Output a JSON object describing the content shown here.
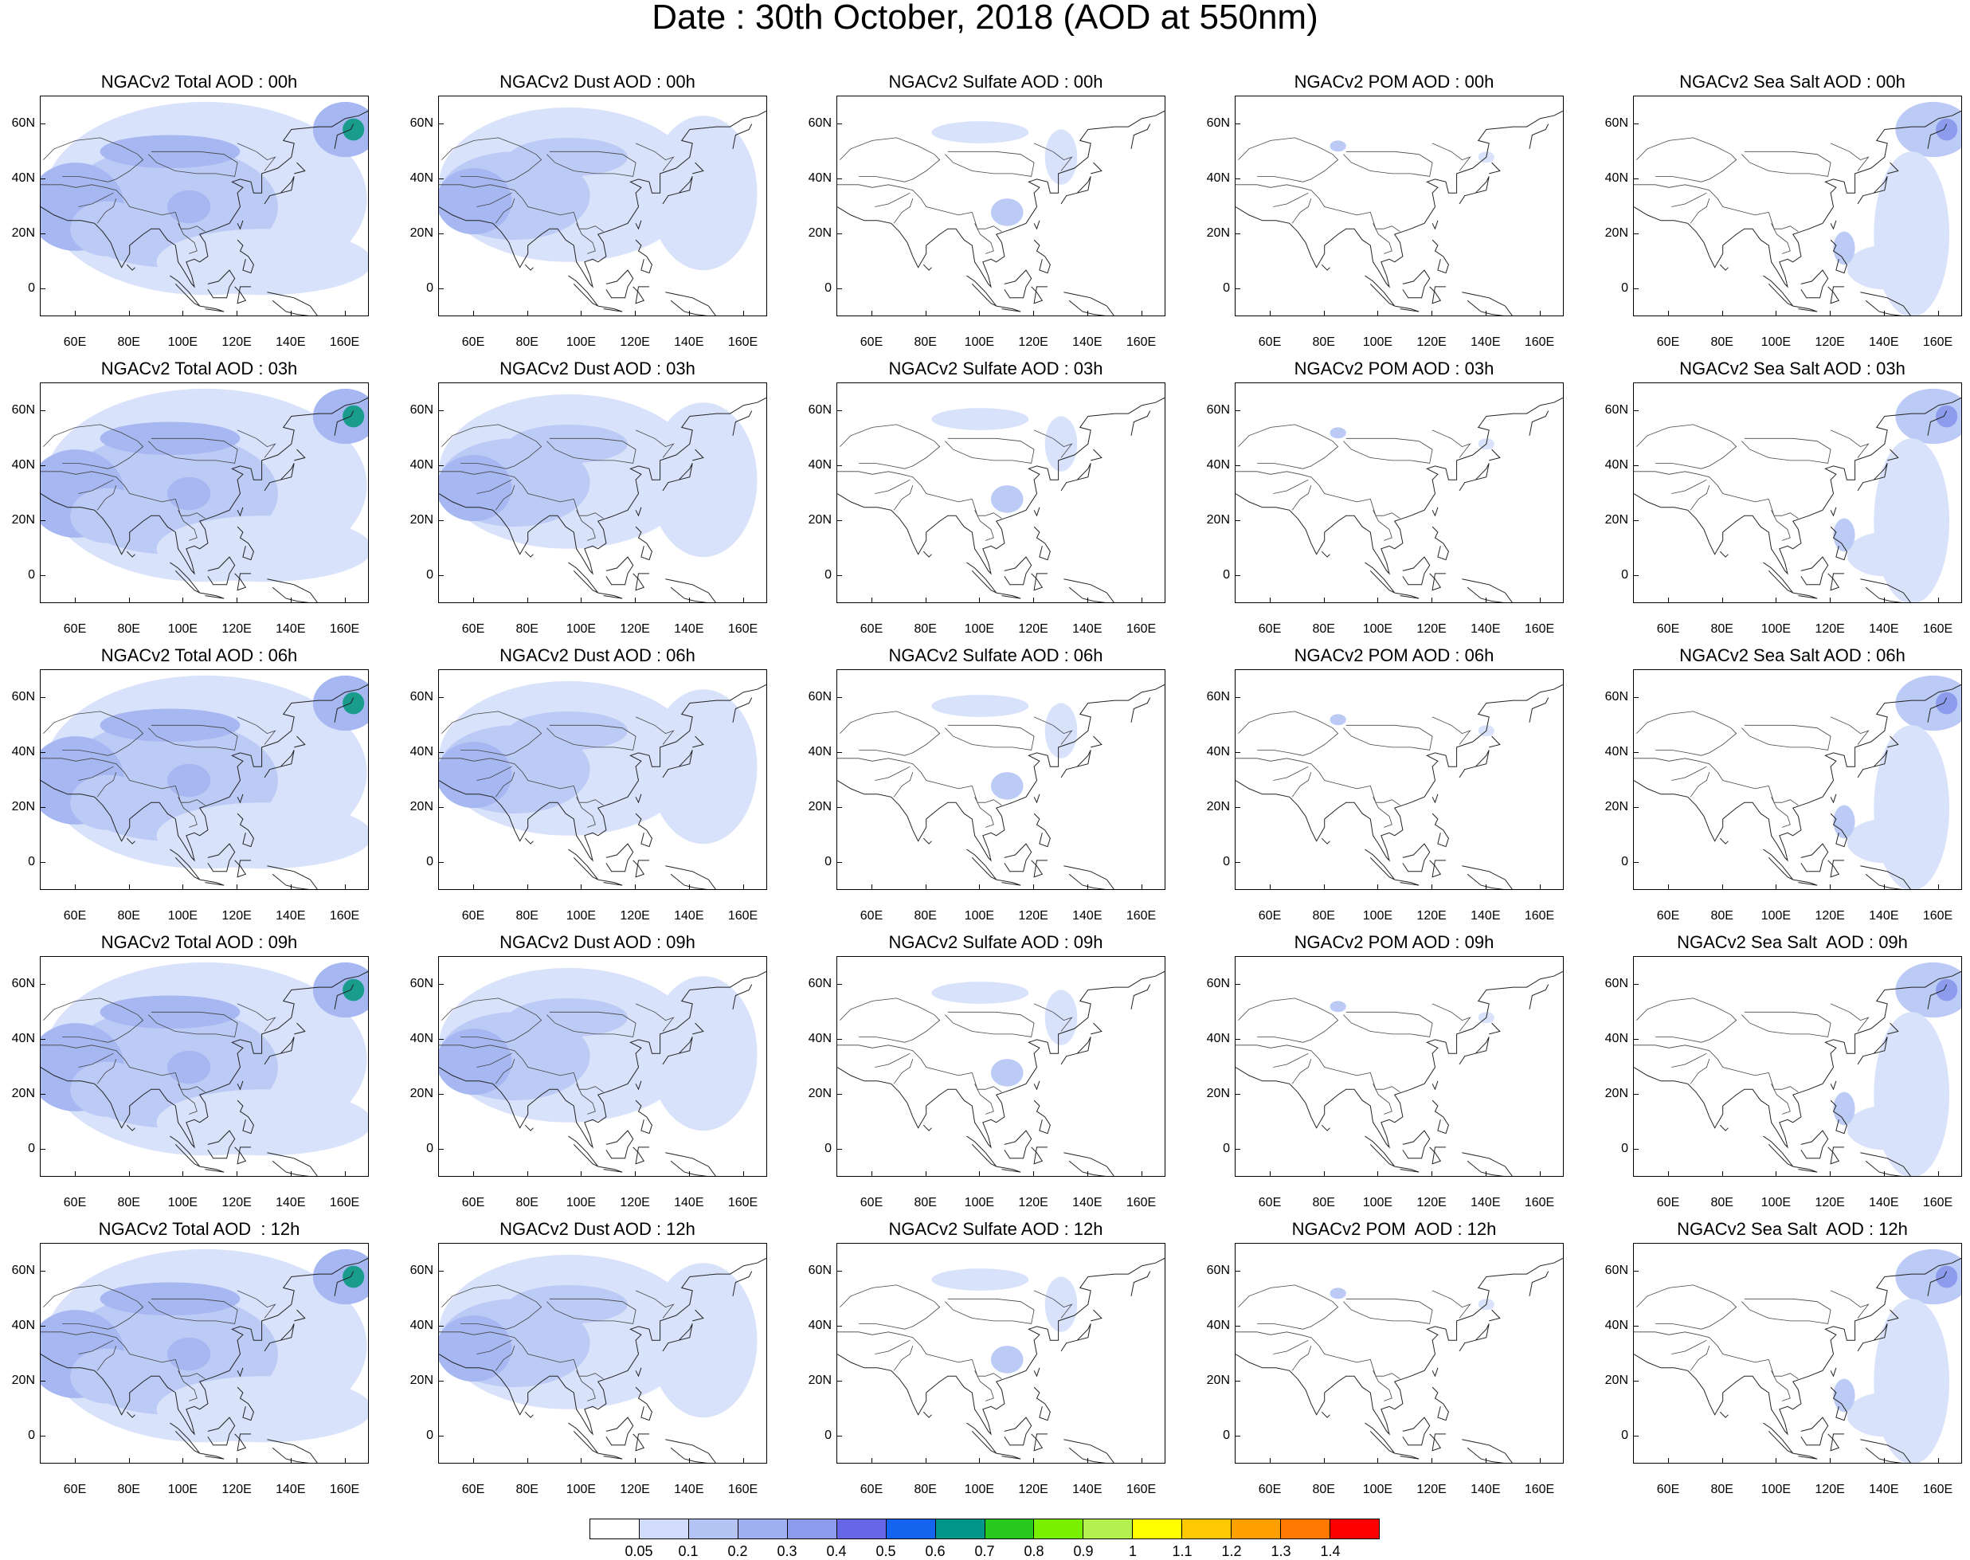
{
  "title": "Date : 30th October, 2018 (AOD at 550nm)",
  "axes": {
    "lat_labels": [
      "60N",
      "40N",
      "20N",
      "0"
    ],
    "lon_labels": [
      "60E",
      "80E",
      "100E",
      "120E",
      "140E",
      "160E"
    ]
  },
  "panels": [
    {
      "title": "NGACv2 Total AOD : 00h",
      "species": "total",
      "hour": "00h"
    },
    {
      "title": "NGACv2 Dust AOD : 00h",
      "species": "dust",
      "hour": "00h"
    },
    {
      "title": "NGACv2 Sulfate AOD : 00h",
      "species": "sulfate",
      "hour": "00h"
    },
    {
      "title": "NGACv2 POM AOD : 00h",
      "species": "pom",
      "hour": "00h"
    },
    {
      "title": "NGACv2 Sea Salt AOD : 00h",
      "species": "seasalt",
      "hour": "00h"
    },
    {
      "title": "NGACv2 Total AOD : 03h",
      "species": "total",
      "hour": "03h"
    },
    {
      "title": "NGACv2 Dust AOD : 03h",
      "species": "dust",
      "hour": "03h"
    },
    {
      "title": "NGACv2 Sulfate AOD : 03h",
      "species": "sulfate",
      "hour": "03h"
    },
    {
      "title": "NGACv2 POM AOD : 03h",
      "species": "pom",
      "hour": "03h"
    },
    {
      "title": "NGACv2 Sea Salt AOD : 03h",
      "species": "seasalt",
      "hour": "03h"
    },
    {
      "title": "NGACv2 Total AOD : 06h",
      "species": "total",
      "hour": "06h"
    },
    {
      "title": "NGACv2 Dust AOD : 06h",
      "species": "dust",
      "hour": "06h"
    },
    {
      "title": "NGACv2 Sulfate AOD : 06h",
      "species": "sulfate",
      "hour": "06h"
    },
    {
      "title": "NGACv2 POM AOD : 06h",
      "species": "pom",
      "hour": "06h"
    },
    {
      "title": "NGACv2 Sea Salt AOD : 06h",
      "species": "seasalt",
      "hour": "06h"
    },
    {
      "title": "NGACv2 Total AOD : 09h",
      "species": "total",
      "hour": "09h"
    },
    {
      "title": "NGACv2 Dust AOD : 09h",
      "species": "dust",
      "hour": "09h"
    },
    {
      "title": "NGACv2 Sulfate AOD : 09h",
      "species": "sulfate",
      "hour": "09h"
    },
    {
      "title": "NGACv2 POM AOD : 09h",
      "species": "pom",
      "hour": "09h"
    },
    {
      "title": "NGACv2 Sea Salt  AOD : 09h",
      "species": "seasalt",
      "hour": "09h"
    },
    {
      "title": "NGACv2 Total AOD  : 12h",
      "species": "total",
      "hour": "12h"
    },
    {
      "title": "NGACv2 Dust AOD : 12h",
      "species": "dust",
      "hour": "12h"
    },
    {
      "title": "NGACv2 Sulfate AOD : 12h",
      "species": "sulfate",
      "hour": "12h"
    },
    {
      "title": "NGACv2 POM  AOD : 12h",
      "species": "pom",
      "hour": "12h"
    },
    {
      "title": "NGACv2 Sea Salt  AOD : 12h",
      "species": "seasalt",
      "hour": "12h"
    }
  ],
  "colorbar": {
    "colors": [
      "#ffffff",
      "#d2dcfa",
      "#b4c4f5",
      "#9fb0f0",
      "#8c9bec",
      "#6666e6",
      "#1464f0",
      "#00968c",
      "#28c81e",
      "#78f000",
      "#b4f050",
      "#ffff00",
      "#ffc800",
      "#ffa000",
      "#ff7800",
      "#ff0000"
    ],
    "labels": [
      "0.05",
      "0.1",
      "0.2",
      "0.3",
      "0.4",
      "0.5",
      "0.6",
      "0.7",
      "0.8",
      "0.9",
      "1",
      "1.1",
      "1.2",
      "1.3",
      "1.4"
    ]
  }
}
